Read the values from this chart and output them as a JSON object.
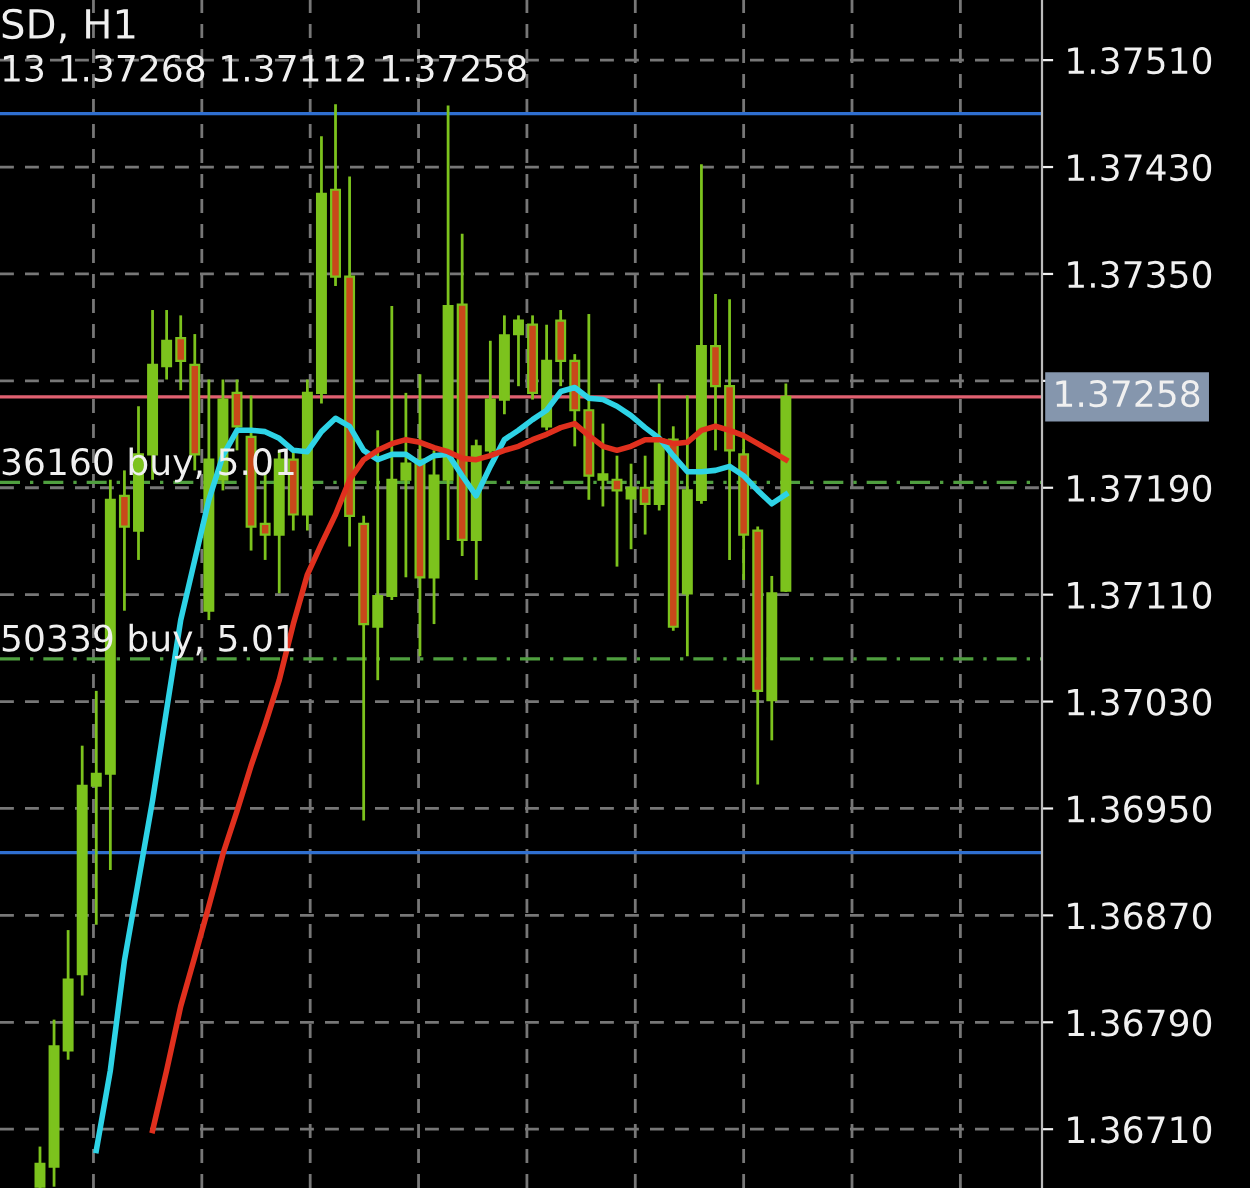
{
  "chart_data": {
    "type": "candlestick",
    "title": "SD, H1",
    "subtitle": "13 1.37268 1.37112 1.37258",
    "categories": [
      null,
      null,
      null,
      null,
      null,
      null,
      null,
      null,
      null,
      null,
      null,
      null,
      null,
      null,
      null,
      null,
      null,
      null,
      null,
      null,
      null,
      null,
      null,
      null,
      null,
      null,
      null,
      null,
      null,
      null,
      null,
      null,
      null,
      null,
      null,
      null,
      null,
      null,
      null,
      null,
      null,
      null,
      null,
      null,
      null,
      null,
      null,
      null,
      null,
      null,
      null,
      null,
      null,
      null
    ],
    "ohlc": [
      [
        1.36667,
        1.36697,
        1.36666,
        1.36684
      ],
      [
        1.36682,
        1.36792,
        1.36667,
        1.36772
      ],
      [
        1.36769,
        1.36859,
        1.36762,
        1.36822
      ],
      [
        1.36826,
        1.36997,
        1.3681,
        1.36967
      ],
      [
        1.36967,
        1.37038,
        1.36863,
        1.36976
      ],
      [
        1.36976,
        1.37196,
        1.36904,
        1.37181
      ],
      [
        1.37184,
        1.37203,
        1.37098,
        1.37161
      ],
      [
        1.37158,
        1.37251,
        1.37136,
        1.37215
      ],
      [
        1.37215,
        1.37323,
        1.37196,
        1.37282
      ],
      [
        1.37281,
        1.37323,
        1.37271,
        1.373
      ],
      [
        1.37302,
        1.37319,
        1.37263,
        1.37285
      ],
      [
        1.37282,
        1.37305,
        1.37203,
        1.37215
      ],
      [
        1.37098,
        1.37271,
        1.37091,
        1.37211
      ],
      [
        1.37196,
        1.37271,
        1.37188,
        1.37256
      ],
      [
        1.37261,
        1.37271,
        1.37218,
        1.37236
      ],
      [
        1.37228,
        1.37259,
        1.37143,
        1.37161
      ],
      [
        1.37163,
        1.372,
        1.37136,
        1.37155
      ],
      [
        1.37155,
        1.37218,
        1.37111,
        1.37211
      ],
      [
        1.37211,
        1.37218,
        1.37158,
        1.3717
      ],
      [
        1.3717,
        1.37271,
        1.37158,
        1.37261
      ],
      [
        1.37261,
        1.37453,
        1.37253,
        1.3741
      ],
      [
        1.37413,
        1.37477,
        1.37341,
        1.37348
      ],
      [
        1.37348,
        1.37423,
        1.37146,
        1.37169
      ],
      [
        1.37163,
        1.37169,
        1.36941,
        1.37088
      ],
      [
        1.37086,
        1.37233,
        1.37046,
        1.37109
      ],
      [
        1.37109,
        1.37326,
        1.37106,
        1.37196
      ],
      [
        1.37196,
        1.37261,
        1.37123,
        1.37208
      ],
      [
        1.37211,
        1.37275,
        1.37064,
        1.37123
      ],
      [
        1.37123,
        1.37218,
        1.37088,
        1.37199
      ],
      [
        1.37196,
        1.37476,
        1.37151,
        1.37326
      ],
      [
        1.37327,
        1.3738,
        1.37139,
        1.37151
      ],
      [
        1.37151,
        1.37226,
        1.37121,
        1.37221
      ],
      [
        1.37218,
        1.373,
        1.37215,
        1.37256
      ],
      [
        1.37256,
        1.37319,
        1.37245,
        1.37304
      ],
      [
        1.37305,
        1.37319,
        1.37266,
        1.37315
      ],
      [
        1.37312,
        1.37319,
        1.37256,
        1.37261
      ],
      [
        1.37236,
        1.37312,
        1.37233,
        1.37285
      ],
      [
        1.37315,
        1.37323,
        1.37266,
        1.37285
      ],
      [
        1.37285,
        1.3729,
        1.37221,
        1.37248
      ],
      [
        1.37248,
        1.3732,
        1.37181,
        1.37199
      ],
      [
        1.37196,
        1.37238,
        1.37176,
        1.372
      ],
      [
        1.37196,
        1.37214,
        1.37131,
        1.37188
      ],
      [
        1.37182,
        1.37208,
        1.37144,
        1.3719
      ],
      [
        1.3719,
        1.37214,
        1.37155,
        1.37178
      ],
      [
        1.37178,
        1.37268,
        1.37173,
        1.37226
      ],
      [
        1.37226,
        1.37236,
        1.37083,
        1.37086
      ],
      [
        1.37111,
        1.37259,
        1.37064,
        1.37188
      ],
      [
        1.37181,
        1.37432,
        1.37178,
        1.37296
      ],
      [
        1.37296,
        1.37335,
        1.37218,
        1.37266
      ],
      [
        1.37266,
        1.37331,
        1.37136,
        1.37218
      ],
      [
        1.37215,
        1.37228,
        1.37121,
        1.37155
      ],
      [
        1.37158,
        1.37161,
        1.36968,
        1.37038
      ],
      [
        1.37031,
        1.37124,
        1.37001,
        1.37111
      ],
      [
        1.37113,
        1.37268,
        1.37112,
        1.37258
      ]
    ],
    "colors": [
      "#7cc31d",
      "#7cc31d",
      "#7cc31d",
      "#7cc31d",
      "#7cc31d",
      "#7cc31d",
      "#c8481a",
      "#7cc31d",
      "#7cc31d",
      "#7cc31d",
      "#c8481a",
      "#c8481a",
      "#7cc31d",
      "#7cc31d",
      "#c8481a",
      "#c8481a",
      "#c8481a",
      "#7cc31d",
      "#c8481a",
      "#7cc31d",
      "#7cc31d",
      "#c8481a",
      "#c8481a",
      "#c8481a",
      "#7cc31d",
      "#7cc31d",
      "#7cc31d",
      "#c8481a",
      "#7cc31d",
      "#7cc31d",
      "#c8481a",
      "#7cc31d",
      "#7cc31d",
      "#7cc31d",
      "#7cc31d",
      "#c8481a",
      "#7cc31d",
      "#c8481a",
      "#c8481a",
      "#c8481a",
      "#7cc31d",
      "#c8481a",
      "#7cc31d",
      "#c8481a",
      "#7cc31d",
      "#c8481a",
      "#7cc31d",
      "#7cc31d",
      "#c8481a",
      "#c8481a",
      "#c8481a",
      "#c8481a",
      "#7cc31d",
      "#7cc31d"
    ],
    "series": [
      {
        "type": "line",
        "color": "#2ed3e6",
        "values": [
          null,
          null,
          null,
          null,
          1.36694,
          1.36754,
          1.36836,
          1.36896,
          1.36956,
          1.37024,
          1.37091,
          1.37136,
          1.37181,
          1.37214,
          1.37233,
          1.37233,
          1.37232,
          1.37227,
          1.37218,
          1.37217,
          1.37232,
          1.37242,
          1.37236,
          1.37218,
          1.37211,
          1.37215,
          1.37215,
          1.37208,
          1.37214,
          1.37215,
          1.37199,
          1.37184,
          1.37206,
          1.37226,
          1.37233,
          1.37241,
          1.37248,
          1.37262,
          1.37265,
          1.37257,
          1.37256,
          1.37251,
          1.37244,
          1.37235,
          1.37227,
          1.37214,
          1.37202,
          1.37202,
          1.37203,
          1.37206,
          1.37199,
          1.37188,
          1.37178,
          1.37185
        ]
      },
      {
        "type": "line",
        "color": "#e0301e",
        "values": [
          null,
          null,
          null,
          null,
          null,
          null,
          null,
          null,
          1.36709,
          1.36754,
          1.36802,
          1.36839,
          1.36877,
          1.36916,
          1.36948,
          1.36982,
          1.37013,
          1.37046,
          1.37088,
          1.37125,
          1.37148,
          1.3717,
          1.37196,
          1.37211,
          1.37218,
          1.37223,
          1.37226,
          1.37224,
          1.3722,
          1.37217,
          1.37212,
          1.37211,
          1.37214,
          1.37218,
          1.37221,
          1.37226,
          1.3723,
          1.37235,
          1.37238,
          1.37229,
          1.37221,
          1.37218,
          1.37221,
          1.37226,
          1.37226,
          1.37223,
          1.37224,
          1.37233,
          1.37236,
          1.37233,
          1.37229,
          1.37223,
          1.37217,
          1.37211
        ]
      }
    ],
    "ylim": [
      1.36666,
      1.37555
    ],
    "yticks": [
      {
        "value": 1.3671,
        "label": "1.36710"
      },
      {
        "value": 1.3679,
        "label": "1.36790"
      },
      {
        "value": 1.3687,
        "label": "1.36870"
      },
      {
        "value": 1.3695,
        "label": "1.36950"
      },
      {
        "value": 1.3703,
        "label": "1.37030"
      },
      {
        "value": 1.3711,
        "label": "1.37110"
      },
      {
        "value": 1.3719,
        "label": "1.37190"
      },
      {
        "value": 1.3727,
        "label": null
      },
      {
        "value": 1.3735,
        "label": "1.37350"
      },
      {
        "value": 1.3743,
        "label": "1.37430"
      },
      {
        "value": 1.3751,
        "label": "1.37510"
      }
    ],
    "ref_lines": [
      {
        "axis": "y",
        "value": 1.3747,
        "color": "#2f6fd0",
        "line_style": "solid"
      },
      {
        "axis": "y",
        "value": 1.36917,
        "color": "#2f6fd0",
        "line_style": "solid"
      },
      {
        "axis": "y",
        "value": 1.37258,
        "label": "1.37258",
        "color": "#e06070",
        "line_style": "solid"
      },
      {
        "axis": "y",
        "value": 1.37194,
        "label": "36160 buy, 5.01",
        "color": "#4f9f3f",
        "line_style": "dashed"
      },
      {
        "axis": "y",
        "value": 1.37062,
        "label": "50339 buy, 5.01",
        "color": "#4f9f3f",
        "line_style": "dashed"
      }
    ],
    "grid": true,
    "tick_labels": "y"
  }
}
